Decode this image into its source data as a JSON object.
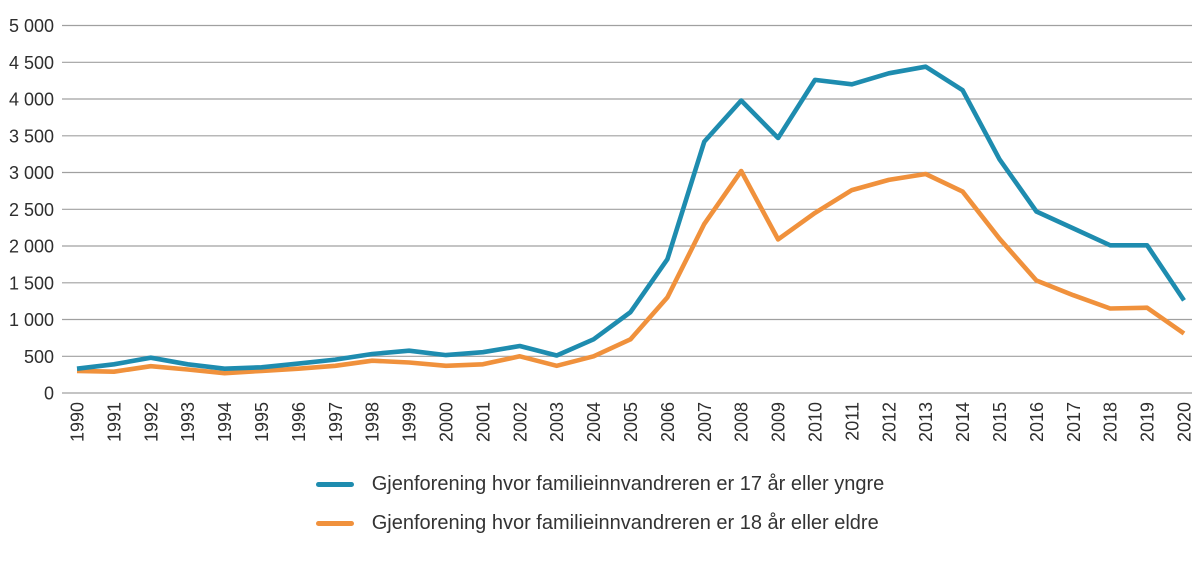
{
  "chart_data": {
    "type": "line",
    "title": "",
    "xlabel": "",
    "ylabel": "",
    "x": [
      1990,
      1991,
      1992,
      1993,
      1994,
      1995,
      1996,
      1997,
      1998,
      1999,
      2000,
      2001,
      2002,
      2003,
      2004,
      2005,
      2006,
      2007,
      2008,
      2009,
      2010,
      2011,
      2012,
      2013,
      2014,
      2015,
      2016,
      2017,
      2018,
      2019,
      2020
    ],
    "series": [
      {
        "name": "Gjenforening hvor familieinnvandreren er 17 år eller yngre",
        "color": "#1e8caf",
        "values": [
          330,
          390,
          480,
          390,
          330,
          350,
          400,
          455,
          530,
          575,
          515,
          555,
          640,
          510,
          730,
          1100,
          1820,
          3420,
          3980,
          3470,
          4260,
          4200,
          4350,
          4440,
          4120,
          3180,
          2470,
          2240,
          2010,
          2010,
          1260
        ]
      },
      {
        "name": "Gjenforening hvor familieinnvandreren er 18 år eller eldre",
        "color": "#f0913c",
        "values": [
          300,
          290,
          365,
          320,
          270,
          300,
          330,
          370,
          440,
          415,
          370,
          390,
          500,
          370,
          500,
          730,
          1300,
          2300,
          3020,
          2090,
          2450,
          2760,
          2900,
          2980,
          2740,
          2100,
          1530,
          1330,
          1150,
          1160,
          810
        ]
      }
    ],
    "ylim": [
      0,
      5000
    ],
    "ytick_step": 500,
    "ytick_labels": [
      "0",
      "500",
      "1 000",
      "1 500",
      "2 000",
      "2 500",
      "3 000",
      "3 500",
      "4 000",
      "4 500",
      "5 000"
    ],
    "grid": true,
    "gridline_color": "#a0a0a0",
    "legend_position": "bottom"
  }
}
